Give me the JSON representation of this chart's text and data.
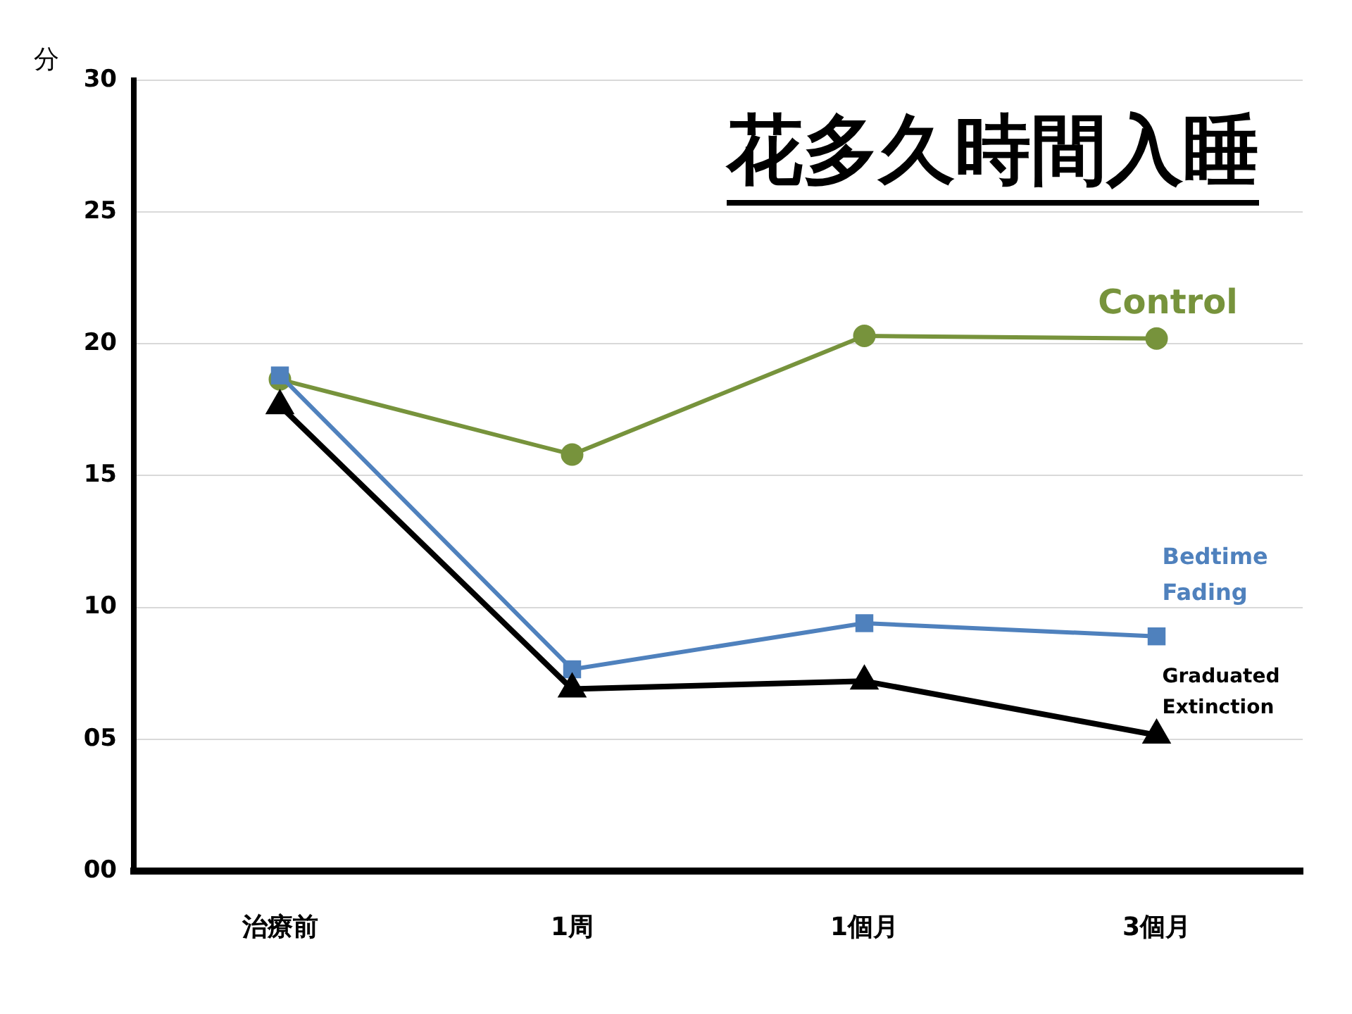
{
  "chart_data": {
    "type": "line",
    "title": "花多久時間入睡",
    "ylabel": "分",
    "categories": [
      "治療前",
      "1周",
      "1個月",
      "3個月"
    ],
    "series": [
      {
        "name": "Control",
        "color": "#77933c",
        "marker": "circle",
        "values": [
          18.65,
          15.8,
          20.3,
          20.2
        ]
      },
      {
        "name": "Bedtime Fading",
        "color": "#4f81bd",
        "marker": "square",
        "values": [
          18.8,
          7.65,
          9.4,
          8.9
        ]
      },
      {
        "name": "Graduated Extinction",
        "color": "#000000",
        "marker": "triangle",
        "values": [
          17.65,
          6.9,
          7.2,
          5.15
        ]
      }
    ],
    "ylim": [
      0,
      30
    ],
    "yticks": [
      {
        "value": 0,
        "label": "00"
      },
      {
        "value": 5,
        "label": "05"
      },
      10,
      15,
      20,
      25,
      30
    ],
    "grid": "y",
    "legend": false
  }
}
